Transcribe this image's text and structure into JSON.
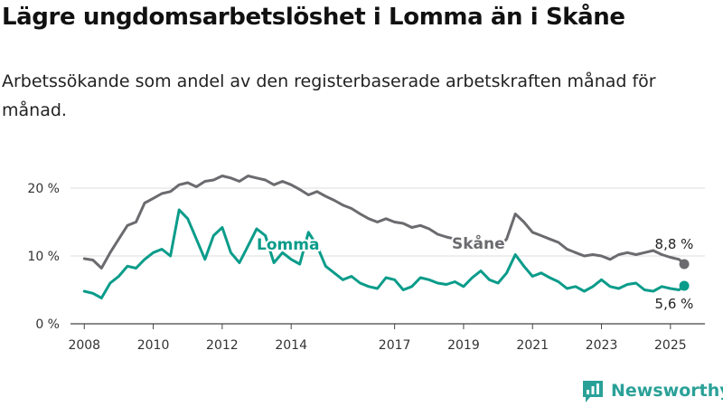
{
  "title": "Lägre ungdomsarbetslöshet i Lomma än i Skåne",
  "subtitle": "Arbetssökande som andel av den registerbaserade arbetskraften månad för månad.",
  "brand": {
    "name": "Newsworthy",
    "icon": "newsworthy-logo-icon"
  },
  "colors": {
    "lomma": "#0a9c8a",
    "skane": "#6b6b6f",
    "grid": "#dcdcdc",
    "axis": "#444444"
  },
  "chart_data": {
    "type": "line",
    "xlabel": "",
    "ylabel": "",
    "ylim": [
      0,
      20
    ],
    "xlim": [
      2007.6,
      2026.0
    ],
    "y_ticks": [
      0,
      10,
      20
    ],
    "y_tick_labels": [
      "0 %",
      "10 %",
      "20 %"
    ],
    "x_ticks": [
      2008,
      2010,
      2012,
      2014,
      2017,
      2019,
      2021,
      2023,
      2025
    ],
    "x_tick_labels": [
      "2008",
      "2010",
      "2012",
      "2014",
      "2017",
      "2019",
      "2021",
      "2023",
      "2025"
    ],
    "grid": true,
    "legend": "inline labels",
    "series": [
      {
        "name": "Skåne",
        "end_label": "8,8 %",
        "x": [
          2008.0,
          2008.25,
          2008.5,
          2008.75,
          2009.0,
          2009.25,
          2009.5,
          2009.75,
          2010.0,
          2010.25,
          2010.5,
          2010.75,
          2011.0,
          2011.25,
          2011.5,
          2011.75,
          2012.0,
          2012.25,
          2012.5,
          2012.75,
          2013.0,
          2013.25,
          2013.5,
          2013.75,
          2014.0,
          2014.25,
          2014.5,
          2014.75,
          2015.0,
          2015.25,
          2015.5,
          2015.75,
          2016.0,
          2016.25,
          2016.5,
          2016.75,
          2017.0,
          2017.25,
          2017.5,
          2017.75,
          2018.0,
          2018.25,
          2018.5,
          2018.75,
          2019.0,
          2019.25,
          2019.5,
          2019.75,
          2020.0,
          2020.25,
          2020.5,
          2020.75,
          2021.0,
          2021.25,
          2021.5,
          2021.75,
          2022.0,
          2022.25,
          2022.5,
          2022.75,
          2023.0,
          2023.25,
          2023.5,
          2023.75,
          2024.0,
          2024.25,
          2024.5,
          2024.75,
          2025.0,
          2025.25,
          2025.4
        ],
        "values": [
          9.6,
          9.4,
          8.2,
          10.5,
          12.5,
          14.5,
          15.0,
          17.8,
          18.5,
          19.2,
          19.5,
          20.5,
          20.8,
          20.2,
          21.0,
          21.2,
          21.8,
          21.5,
          21.0,
          21.8,
          21.5,
          21.2,
          20.5,
          21.0,
          20.5,
          19.8,
          19.0,
          19.5,
          18.8,
          18.2,
          17.5,
          17.0,
          16.2,
          15.5,
          15.0,
          15.5,
          15.0,
          14.8,
          14.2,
          14.5,
          14.0,
          13.2,
          12.8,
          12.5,
          12.5,
          12.0,
          11.5,
          11.0,
          11.2,
          12.5,
          16.2,
          15.0,
          13.5,
          13.0,
          12.5,
          12.0,
          11.0,
          10.5,
          10.0,
          10.2,
          10.0,
          9.5,
          10.2,
          10.5,
          10.2,
          10.5,
          10.8,
          10.2,
          9.8,
          9.5,
          8.8
        ]
      },
      {
        "name": "Lomma",
        "end_label": "5,6 %",
        "x": [
          2008.0,
          2008.25,
          2008.5,
          2008.75,
          2009.0,
          2009.25,
          2009.5,
          2009.75,
          2010.0,
          2010.25,
          2010.5,
          2010.75,
          2011.0,
          2011.25,
          2011.5,
          2011.75,
          2012.0,
          2012.25,
          2012.5,
          2012.75,
          2013.0,
          2013.25,
          2013.5,
          2013.75,
          2014.0,
          2014.25,
          2014.5,
          2014.75,
          2015.0,
          2015.25,
          2015.5,
          2015.75,
          2016.0,
          2016.25,
          2016.5,
          2016.75,
          2017.0,
          2017.25,
          2017.5,
          2017.75,
          2018.0,
          2018.25,
          2018.5,
          2018.75,
          2019.0,
          2019.25,
          2019.5,
          2019.75,
          2020.0,
          2020.25,
          2020.5,
          2020.75,
          2021.0,
          2021.25,
          2021.5,
          2021.75,
          2022.0,
          2022.25,
          2022.5,
          2022.75,
          2023.0,
          2023.25,
          2023.5,
          2023.75,
          2024.0,
          2024.25,
          2024.5,
          2024.75,
          2025.0,
          2025.25,
          2025.4
        ],
        "values": [
          4.8,
          4.5,
          3.8,
          6.0,
          7.0,
          8.5,
          8.2,
          9.5,
          10.5,
          11.0,
          10.0,
          16.8,
          15.5,
          12.5,
          9.5,
          13.0,
          14.2,
          10.5,
          9.0,
          11.5,
          14.0,
          13.0,
          9.0,
          10.5,
          9.5,
          8.8,
          13.5,
          11.5,
          8.5,
          7.5,
          6.5,
          7.0,
          6.0,
          5.5,
          5.2,
          6.8,
          6.5,
          5.0,
          5.5,
          6.8,
          6.5,
          6.0,
          5.8,
          6.2,
          5.5,
          6.8,
          7.8,
          6.5,
          6.0,
          7.5,
          10.2,
          8.5,
          7.0,
          7.5,
          6.8,
          6.2,
          5.2,
          5.5,
          4.8,
          5.5,
          6.5,
          5.5,
          5.2,
          5.8,
          6.0,
          5.0,
          4.8,
          5.5,
          5.2,
          5.0,
          5.6
        ]
      }
    ]
  }
}
